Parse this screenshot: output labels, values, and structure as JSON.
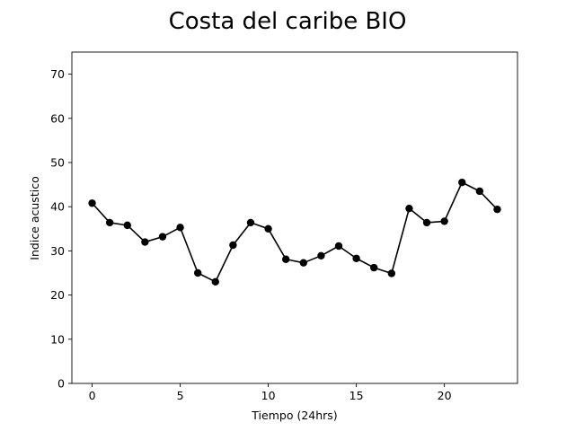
{
  "chart_data": {
    "type": "line",
    "title": "Costa del caribe BIO",
    "xlabel": "Tiempo (24hrs)",
    "ylabel": "Indice acustico",
    "xlim": [
      -1.15,
      24.15
    ],
    "ylim": [
      0,
      75
    ],
    "xticks": [
      0,
      5,
      10,
      15,
      20
    ],
    "yticks": [
      0,
      10,
      20,
      30,
      40,
      50,
      60,
      70
    ],
    "grid": false,
    "series": [
      {
        "color": "#000000",
        "marker": "circle",
        "x": [
          0,
          1,
          2,
          3,
          4,
          5,
          6,
          7,
          8,
          9,
          10,
          11,
          12,
          13,
          14,
          15,
          16,
          17,
          18,
          19,
          20,
          21,
          22,
          23
        ],
        "values": [
          40.8,
          36.4,
          35.8,
          32.0,
          33.2,
          35.3,
          25.0,
          23.0,
          31.3,
          36.4,
          35.0,
          28.1,
          27.3,
          28.9,
          31.1,
          28.3,
          26.2,
          24.9,
          39.6,
          36.4,
          36.7,
          45.5,
          43.5,
          39.4
        ]
      }
    ]
  }
}
